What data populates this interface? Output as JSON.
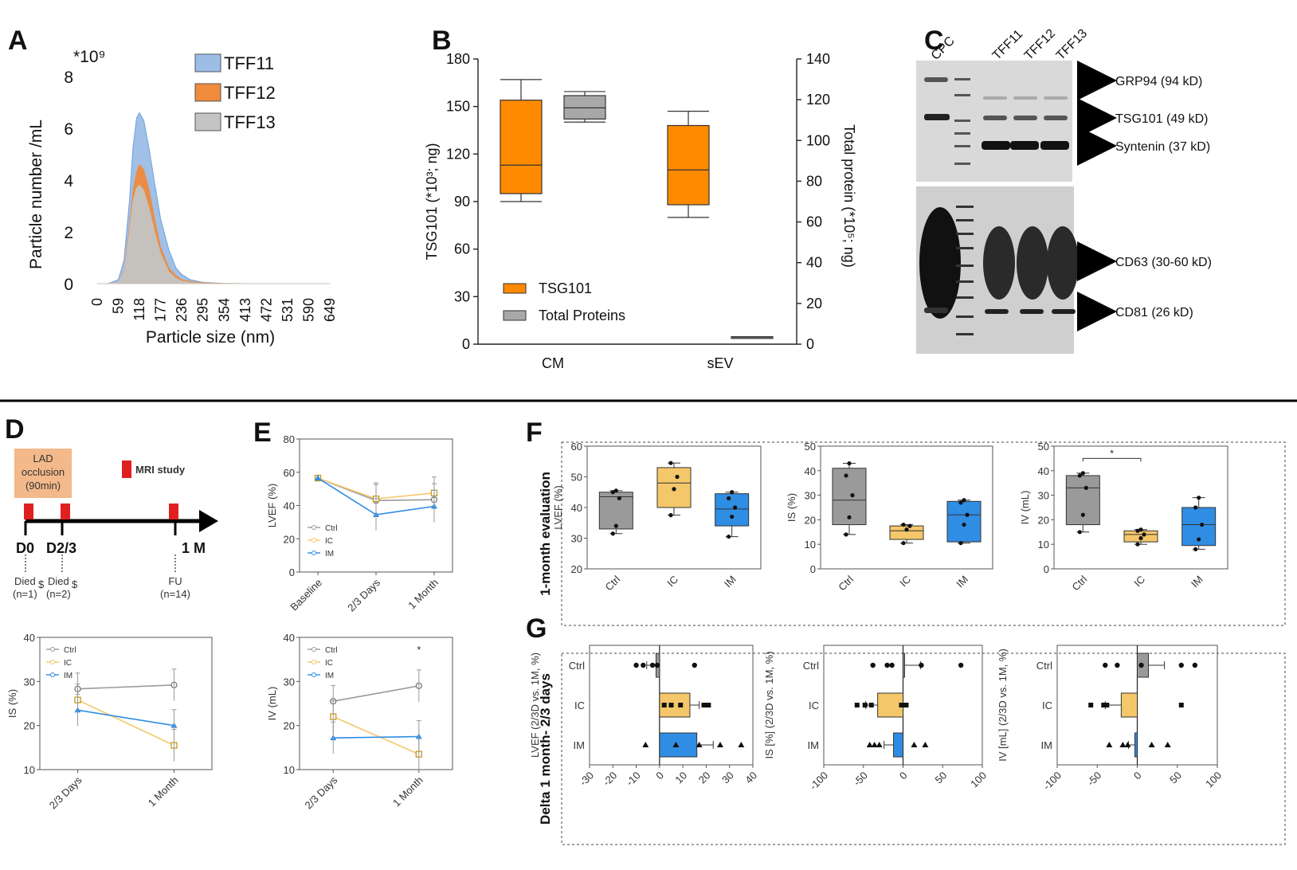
{
  "panels": {
    "A": "A",
    "B": "B",
    "C": "C",
    "D": "D",
    "E": "E",
    "F": "F",
    "G": "G"
  },
  "colors": {
    "tff11": "#9cbde6",
    "tff12": "#f08a3c",
    "tff13": "#c4c4c4",
    "ctrl": "#9a9a9a",
    "ic": "#f5c76b",
    "im": "#2f8de4",
    "box_orange": "#ff8a00",
    "box_grey": "#a8a8a8",
    "mri_red": "#e02020",
    "lad_box": "#f3b98a"
  },
  "chart_data": [
    {
      "id": "A",
      "type": "area",
      "multiplier_label": "*10⁹",
      "xlabel": "Particle size (nm)",
      "ylabel": "Particle number /mL",
      "x_ticks": [
        "0",
        "59",
        "118",
        "177",
        "236",
        "295",
        "354",
        "413",
        "472",
        "531",
        "590",
        "649"
      ],
      "y_ticks": [
        "0",
        "2",
        "4",
        "6",
        "8"
      ],
      "ylim": [
        0,
        8
      ],
      "legend": [
        "TFF11",
        "TFF12",
        "TFF13"
      ],
      "x": [
        0,
        30,
        59,
        75,
        90,
        100,
        110,
        118,
        130,
        145,
        160,
        177,
        200,
        220,
        236,
        260,
        295,
        354,
        413,
        472,
        531,
        590,
        649
      ],
      "series": [
        {
          "name": "TFF11",
          "values": [
            0,
            0,
            0.15,
            0.9,
            3.2,
            5.3,
            6.4,
            6.6,
            6.3,
            5.2,
            3.9,
            2.5,
            1.3,
            0.6,
            0.35,
            0.15,
            0.05,
            0.01,
            0,
            0,
            0,
            0,
            0
          ]
        },
        {
          "name": "TFF12",
          "values": [
            0,
            0,
            0.05,
            0.5,
            2.2,
            3.6,
            4.3,
            4.6,
            4.4,
            3.6,
            2.5,
            1.4,
            0.6,
            0.3,
            0.15,
            0.08,
            0.03,
            0.01,
            0,
            0,
            0,
            0,
            0
          ]
        },
        {
          "name": "TFF13",
          "values": [
            0,
            0,
            0.05,
            0.45,
            2.0,
            3.2,
            3.7,
            3.8,
            3.6,
            2.9,
            2.0,
            1.15,
            0.45,
            0.2,
            0.1,
            0.04,
            0.01,
            0,
            0,
            0,
            0,
            0,
            0
          ]
        }
      ]
    },
    {
      "id": "B",
      "type": "box",
      "categories": [
        "CM",
        "sEV"
      ],
      "ylabel_left": "TSG101 (*10³; ng)",
      "ylabel_right": "Total protein (*10⁵; ng)",
      "left_ticks": [
        "0",
        "30",
        "60",
        "90",
        "120",
        "150",
        "180"
      ],
      "left_lim": [
        0,
        180
      ],
      "right_ticks": [
        "0",
        "20",
        "40",
        "60",
        "80",
        "100",
        "120",
        "140"
      ],
      "right_lim": [
        0,
        140
      ],
      "legend": [
        "TSG101",
        "Total Proteins"
      ],
      "boxes": [
        {
          "series": "TSG101",
          "category": "CM",
          "min": 90,
          "q1": 95,
          "median": 113,
          "q3": 154,
          "max": 167,
          "axis": "left"
        },
        {
          "series": "Total Proteins",
          "category": "CM",
          "min": 109,
          "q1": 110.5,
          "median": 116,
          "q3": 122,
          "max": 124,
          "axis": "right"
        },
        {
          "series": "TSG101",
          "category": "sEV",
          "min": 80,
          "q1": 88,
          "median": 110,
          "q3": 138,
          "max": 147,
          "axis": "left"
        },
        {
          "series": "Total Proteins",
          "category": "sEV",
          "min": 3.3,
          "q1": 3.4,
          "median": 3.5,
          "q3": 3.6,
          "max": 3.7,
          "axis": "right"
        }
      ]
    },
    {
      "id": "E1",
      "type": "line",
      "ylabel": "LVEF (%)",
      "categories": [
        "Baseline",
        "2/3 Days",
        "1 Month"
      ],
      "y_ticks": [
        "0",
        "20",
        "40",
        "60",
        "80"
      ],
      "ylim": [
        0,
        80
      ],
      "series": [
        {
          "name": "Ctrl",
          "values": [
            56.5,
            43,
            43.5
          ]
        },
        {
          "name": "IC",
          "values": [
            56.5,
            44,
            47.5
          ]
        },
        {
          "name": "IM",
          "values": [
            56.5,
            34.5,
            39.5
          ]
        }
      ]
    },
    {
      "id": "E2",
      "type": "line",
      "ylabel": "IV (mL)",
      "categories": [
        "2/3 Days",
        "1 Month"
      ],
      "y_ticks": [
        "10",
        "20",
        "30",
        "40"
      ],
      "ylim": [
        10,
        40
      ],
      "annotation": "*",
      "series": [
        {
          "name": "Ctrl",
          "values": [
            25.5,
            29
          ]
        },
        {
          "name": "IC",
          "values": [
            22,
            13.5
          ]
        },
        {
          "name": "IM",
          "values": [
            17.2,
            17.5
          ]
        }
      ]
    },
    {
      "id": "D2",
      "type": "line",
      "ylabel": "IS (%)",
      "categories": [
        "2/3 Days",
        "1 Month"
      ],
      "y_ticks": [
        "10",
        "20",
        "30",
        "40"
      ],
      "ylim": [
        10,
        40
      ],
      "series": [
        {
          "name": "Ctrl",
          "values": [
            28.3,
            29.2
          ]
        },
        {
          "name": "IC",
          "values": [
            25.8,
            15.5
          ]
        },
        {
          "name": "IM",
          "values": [
            23.5,
            20
          ]
        }
      ]
    },
    {
      "id": "F1",
      "type": "box",
      "ylabel": "LVEF (%)",
      "categories": [
        "Ctrl",
        "IC",
        "IM"
      ],
      "y_ticks": [
        "20",
        "30",
        "40",
        "50",
        "60"
      ],
      "ylim": [
        20,
        60
      ],
      "boxes": [
        {
          "category": "Ctrl",
          "min": 31.5,
          "q1": 33,
          "median": 43.5,
          "q3": 45,
          "max": 45.5,
          "points": [
            31.5,
            34,
            43,
            45,
            45.5
          ]
        },
        {
          "category": "IC",
          "min": 37.5,
          "q1": 40,
          "median": 48,
          "q3": 53,
          "max": 54.5,
          "points": [
            37.5,
            46,
            50,
            54.5
          ]
        },
        {
          "category": "IM",
          "min": 30.5,
          "q1": 34,
          "median": 39.5,
          "q3": 44.5,
          "max": 45,
          "points": [
            30.5,
            37,
            40,
            43,
            45
          ]
        }
      ]
    },
    {
      "id": "F2",
      "type": "box",
      "ylabel": "IS (%)",
      "categories": [
        "Ctrl",
        "IC",
        "IM"
      ],
      "y_ticks": [
        "0",
        "10",
        "20",
        "30",
        "40",
        "50"
      ],
      "ylim": [
        0,
        50
      ],
      "boxes": [
        {
          "category": "Ctrl",
          "min": 14,
          "q1": 18,
          "median": 28,
          "q3": 41,
          "max": 43,
          "points": [
            14,
            21,
            30,
            38,
            43
          ]
        },
        {
          "category": "IC",
          "min": 10.5,
          "q1": 12,
          "median": 15.5,
          "q3": 17.5,
          "max": 18,
          "points": [
            10.5,
            16,
            17.5,
            18
          ]
        },
        {
          "category": "IM",
          "min": 10.5,
          "q1": 11,
          "median": 22,
          "q3": 27.5,
          "max": 28,
          "points": [
            10.5,
            18,
            22,
            27,
            28
          ]
        }
      ]
    },
    {
      "id": "F3",
      "type": "box",
      "ylabel": "IV (mL)",
      "categories": [
        "Ctrl",
        "IC",
        "IM"
      ],
      "y_ticks": [
        "0",
        "10",
        "20",
        "30",
        "40",
        "50"
      ],
      "ylim": [
        0,
        50
      ],
      "annotation": "*",
      "boxes": [
        {
          "category": "Ctrl",
          "min": 15,
          "q1": 18,
          "median": 33,
          "q3": 38,
          "max": 39,
          "points": [
            15,
            22,
            33,
            38,
            39
          ]
        },
        {
          "category": "IC",
          "min": 10,
          "q1": 11,
          "median": 14,
          "q3": 15.5,
          "max": 16,
          "points": [
            10,
            12.5,
            14,
            15.5,
            16
          ]
        },
        {
          "category": "IM",
          "min": 8,
          "q1": 9.5,
          "median": 18,
          "q3": 25,
          "max": 29,
          "points": [
            8,
            12,
            18,
            25,
            29
          ]
        }
      ]
    },
    {
      "id": "G1",
      "type": "bar",
      "orientation": "horizontal",
      "ylabel": "LVEF (2/3D vs. 1M, %)",
      "categories": [
        "Ctrl",
        "IC",
        "IM"
      ],
      "x_ticks": [
        "-30",
        "-20",
        "-10",
        "0",
        "10",
        "20",
        "30",
        "40"
      ],
      "xlim": [
        -30,
        40
      ],
      "values": [
        -1.5,
        13,
        16
      ],
      "errors": [
        4,
        4,
        7
      ],
      "points": [
        [
          -10,
          -7,
          -3,
          -1,
          15
        ],
        [
          2,
          5,
          9,
          19,
          21
        ],
        [
          -6,
          7,
          17,
          26,
          35
        ]
      ]
    },
    {
      "id": "G2",
      "type": "bar",
      "orientation": "horizontal",
      "ylabel": "IS [%] (2/3D vs. 1M, %)",
      "categories": [
        "Ctrl",
        "IC",
        "IM"
      ],
      "x_ticks": [
        "-100",
        "-50",
        "0",
        "50",
        "100"
      ],
      "xlim": [
        -100,
        100
      ],
      "values": [
        2,
        -32,
        -12
      ],
      "errors": [
        20,
        15,
        12
      ],
      "points": [
        [
          -38,
          -20,
          -14,
          23,
          73
        ],
        [
          -58,
          -48,
          -40,
          -2,
          4
        ],
        [
          -42,
          -36,
          -30,
          14,
          28
        ]
      ]
    },
    {
      "id": "G3",
      "type": "bar",
      "orientation": "horizontal",
      "ylabel": "IV [mL] (2/3D vs. 1M, %)",
      "categories": [
        "Ctrl",
        "IC",
        "IM"
      ],
      "x_ticks": [
        "-100",
        "-50",
        "0",
        "50",
        "100"
      ],
      "xlim": [
        -100,
        100
      ],
      "values": [
        14,
        -20,
        -3
      ],
      "errors": [
        20,
        20,
        8
      ],
      "points": [
        [
          -40,
          -25,
          5,
          55,
          72
        ],
        [
          -58,
          -42,
          -38,
          55
        ],
        [
          -35,
          -18,
          -12,
          18,
          38
        ]
      ]
    }
  ],
  "legends": {
    "groups": [
      "Ctrl",
      "IC",
      "IM"
    ]
  },
  "blot": {
    "lanes": [
      "CPC",
      "TFF11",
      "TFF12",
      "TFF13"
    ],
    "bands": [
      "GRP94 (94 kD)",
      "TSG101 (49 kD)",
      "Syntenin (37 kD)",
      "CD63 (30-60 kD)",
      "CD81 (26 kD)"
    ]
  },
  "timeline": {
    "lad_label_1": "LAD",
    "lad_label_2": "occlusion",
    "lad_label_3": "(90min)",
    "mri_label": "MRI study",
    "d0": "D0",
    "d23": "D2/3",
    "m1": "1 M",
    "died1_a": "Died",
    "died1_b": "(n=1)",
    "died2_a": "Died",
    "died2_b": "(n=2)",
    "dollar": "$",
    "fu_a": "FU",
    "fu_b": "(n=14)"
  },
  "side_labels": {
    "f": "1-month evaluation",
    "g": "Delta 1 month- 2/3 days"
  }
}
